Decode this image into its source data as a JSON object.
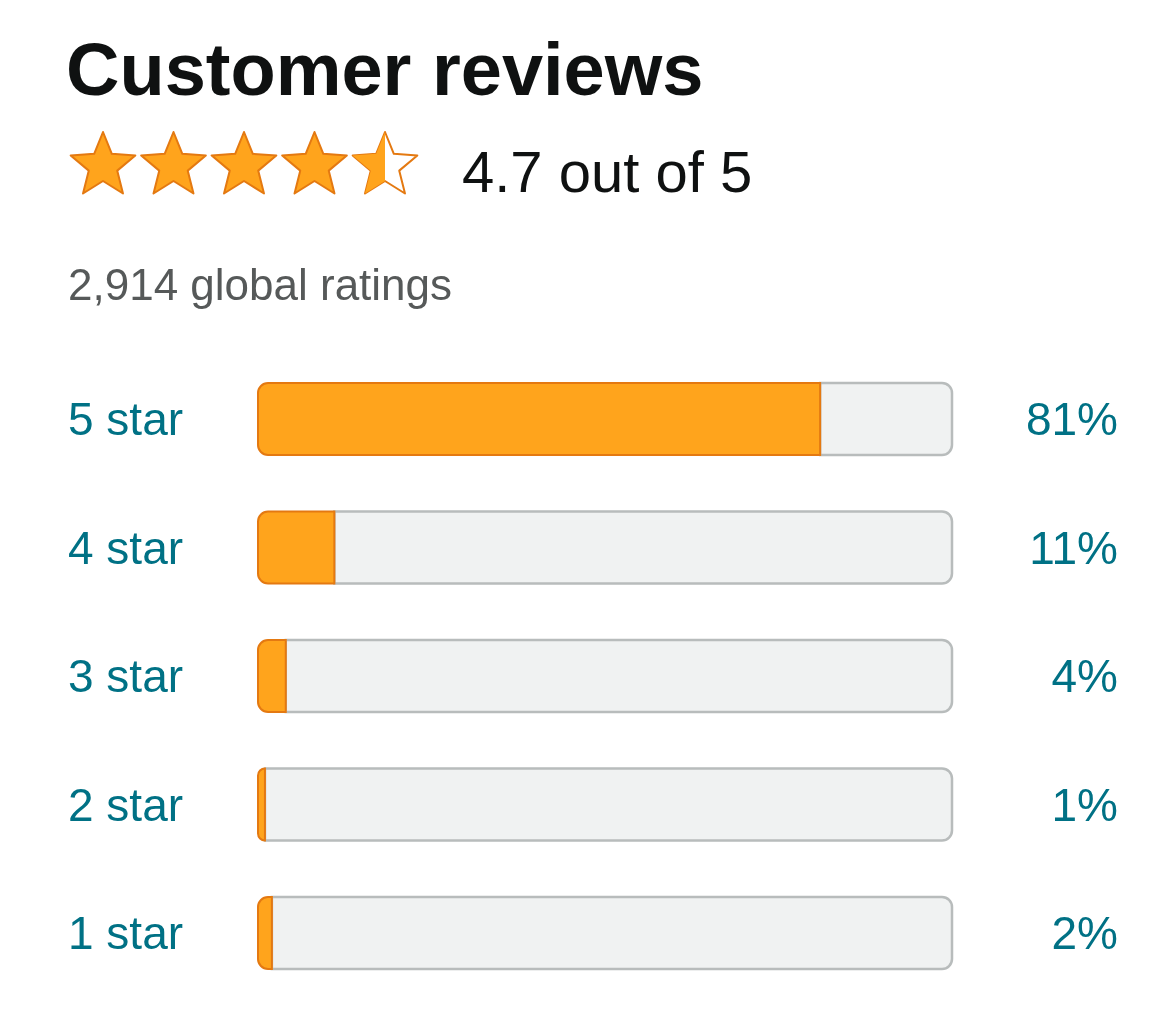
{
  "chart_data": {
    "type": "bar",
    "orientation": "horizontal",
    "title": "Customer reviews",
    "subtitle": "4.7 out of 5",
    "annotations": [
      "2,914 global ratings"
    ],
    "categories": [
      "5 star",
      "4 star",
      "3 star",
      "2 star",
      "1 star"
    ],
    "values": [
      81,
      11,
      4,
      1,
      2
    ],
    "value_labels": [
      "81%",
      "11%",
      "4%",
      "1%",
      "2%"
    ],
    "color": "#ffa41c",
    "xlim": [
      0,
      100
    ],
    "tick_labels": "y"
  }
}
